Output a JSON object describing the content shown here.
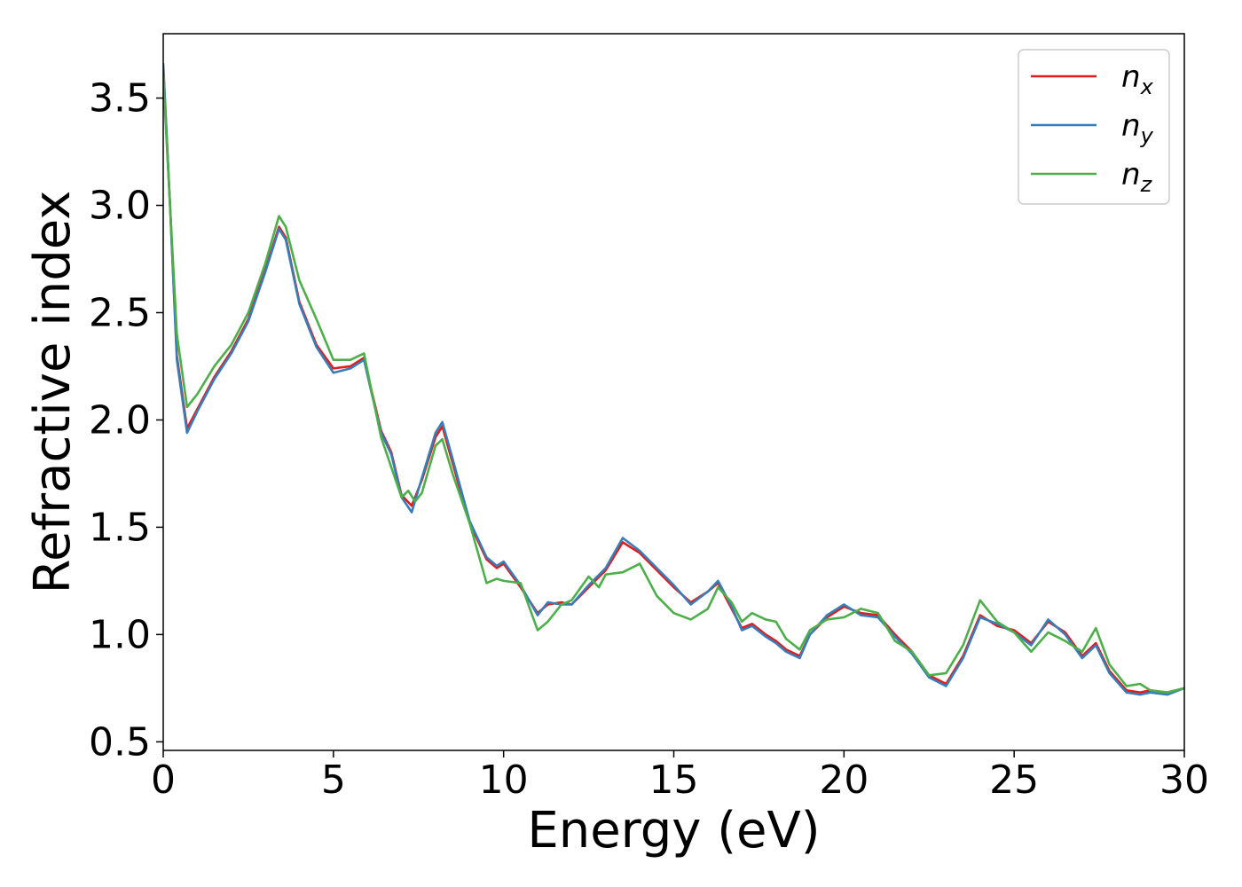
{
  "chart_data": {
    "type": "line",
    "title": "",
    "xlabel": "Energy (eV)",
    "ylabel": "Refractive index",
    "xlim": [
      0,
      30
    ],
    "ylim": [
      0.46,
      3.8
    ],
    "xticks": [
      0,
      5,
      10,
      15,
      20,
      25,
      30
    ],
    "yticks": [
      0.5,
      1.0,
      1.5,
      2.0,
      2.5,
      3.0,
      3.5
    ],
    "xtick_labels": [
      "0",
      "5",
      "10",
      "15",
      "20",
      "25",
      "30"
    ],
    "ytick_labels": [
      "0.5",
      "1.0",
      "1.5",
      "2.0",
      "2.5",
      "3.0",
      "3.5"
    ],
    "grid": false,
    "legend_position": "top-right",
    "series": [
      {
        "name": "n_x",
        "label_base": "n",
        "label_sub": "x",
        "color": "#e41a1c",
        "x": [
          0,
          0.2,
          0.4,
          0.7,
          1.0,
          1.5,
          2.0,
          2.5,
          3.0,
          3.4,
          3.6,
          4.0,
          4.5,
          5.0,
          5.5,
          5.9,
          6.1,
          6.4,
          6.7,
          7.0,
          7.3,
          7.6,
          8.0,
          8.2,
          8.5,
          9.0,
          9.5,
          9.8,
          10.0,
          10.5,
          11.0,
          11.3,
          11.7,
          12.0,
          12.5,
          13.0,
          13.5,
          14.0,
          14.5,
          15.0,
          15.5,
          16.0,
          16.3,
          16.7,
          17.0,
          17.3,
          17.7,
          18.0,
          18.3,
          18.7,
          19.0,
          19.5,
          20.0,
          20.5,
          21.0,
          21.5,
          22.0,
          22.5,
          23.0,
          23.5,
          24.0,
          24.5,
          25.0,
          25.5,
          26.0,
          26.5,
          27.0,
          27.4,
          27.8,
          28.3,
          28.7,
          29.0,
          29.5,
          30.0
        ],
        "y": [
          3.65,
          3.0,
          2.3,
          1.96,
          2.05,
          2.2,
          2.32,
          2.47,
          2.7,
          2.9,
          2.85,
          2.55,
          2.35,
          2.24,
          2.25,
          2.29,
          2.15,
          1.95,
          1.85,
          1.65,
          1.6,
          1.72,
          1.92,
          1.97,
          1.8,
          1.52,
          1.35,
          1.31,
          1.33,
          1.22,
          1.1,
          1.14,
          1.15,
          1.14,
          1.22,
          1.3,
          1.43,
          1.38,
          1.3,
          1.22,
          1.15,
          1.2,
          1.24,
          1.12,
          1.03,
          1.05,
          1.0,
          0.97,
          0.93,
          0.9,
          1.0,
          1.08,
          1.13,
          1.1,
          1.09,
          1.0,
          0.92,
          0.81,
          0.77,
          0.9,
          1.09,
          1.04,
          1.02,
          0.96,
          1.06,
          1.01,
          0.9,
          0.96,
          0.83,
          0.74,
          0.73,
          0.74,
          0.73,
          0.75
        ]
      },
      {
        "name": "n_y",
        "label_base": "n",
        "label_sub": "y",
        "color": "#377eb8",
        "x": [
          0,
          0.2,
          0.4,
          0.7,
          1.0,
          1.5,
          2.0,
          2.5,
          3.0,
          3.4,
          3.6,
          4.0,
          4.5,
          5.0,
          5.5,
          5.9,
          6.1,
          6.4,
          6.7,
          7.0,
          7.3,
          7.6,
          8.0,
          8.2,
          8.5,
          9.0,
          9.5,
          9.8,
          10.0,
          10.5,
          11.0,
          11.3,
          11.7,
          12.0,
          12.5,
          13.0,
          13.5,
          14.0,
          14.5,
          15.0,
          15.5,
          16.0,
          16.3,
          16.7,
          17.0,
          17.3,
          17.7,
          18.0,
          18.3,
          18.7,
          19.0,
          19.5,
          20.0,
          20.5,
          21.0,
          21.5,
          22.0,
          22.5,
          23.0,
          23.5,
          24.0,
          24.5,
          25.0,
          25.5,
          26.0,
          26.5,
          27.0,
          27.4,
          27.8,
          28.3,
          28.7,
          29.0,
          29.5,
          30.0
        ],
        "y": [
          3.66,
          3.0,
          2.28,
          1.94,
          2.04,
          2.19,
          2.31,
          2.46,
          2.69,
          2.89,
          2.84,
          2.54,
          2.34,
          2.22,
          2.24,
          2.28,
          2.14,
          1.94,
          1.84,
          1.64,
          1.57,
          1.73,
          1.94,
          1.99,
          1.82,
          1.53,
          1.36,
          1.32,
          1.34,
          1.23,
          1.09,
          1.15,
          1.14,
          1.14,
          1.23,
          1.31,
          1.45,
          1.39,
          1.31,
          1.23,
          1.14,
          1.2,
          1.25,
          1.13,
          1.02,
          1.04,
          0.99,
          0.96,
          0.92,
          0.89,
          1.0,
          1.09,
          1.14,
          1.09,
          1.08,
          0.99,
          0.91,
          0.8,
          0.76,
          0.89,
          1.08,
          1.05,
          1.01,
          0.95,
          1.07,
          1.0,
          0.89,
          0.95,
          0.82,
          0.73,
          0.72,
          0.73,
          0.72,
          0.75
        ]
      },
      {
        "name": "n_z",
        "label_base": "n",
        "label_sub": "z",
        "color": "#4daf4a",
        "x": [
          0,
          0.2,
          0.4,
          0.7,
          1.0,
          1.5,
          2.0,
          2.5,
          3.0,
          3.4,
          3.6,
          4.0,
          4.5,
          5.0,
          5.5,
          5.9,
          6.1,
          6.4,
          6.7,
          7.0,
          7.2,
          7.4,
          7.6,
          8.0,
          8.2,
          8.5,
          9.0,
          9.5,
          9.8,
          10.0,
          10.5,
          11.0,
          11.3,
          11.7,
          12.0,
          12.5,
          12.8,
          13.0,
          13.5,
          14.0,
          14.5,
          15.0,
          15.5,
          16.0,
          16.3,
          16.7,
          17.0,
          17.3,
          17.7,
          18.0,
          18.3,
          18.7,
          19.0,
          19.5,
          20.0,
          20.5,
          21.0,
          21.5,
          22.0,
          22.5,
          23.0,
          23.5,
          24.0,
          24.5,
          25.0,
          25.5,
          26.0,
          26.5,
          27.0,
          27.4,
          27.8,
          28.3,
          28.7,
          29.0,
          29.5,
          30.0
        ],
        "y": [
          3.6,
          3.0,
          2.4,
          2.06,
          2.12,
          2.25,
          2.35,
          2.5,
          2.73,
          2.95,
          2.9,
          2.65,
          2.47,
          2.28,
          2.28,
          2.31,
          2.15,
          1.92,
          1.78,
          1.64,
          1.67,
          1.62,
          1.66,
          1.88,
          1.91,
          1.75,
          1.52,
          1.24,
          1.26,
          1.25,
          1.24,
          1.02,
          1.06,
          1.14,
          1.16,
          1.27,
          1.22,
          1.28,
          1.29,
          1.33,
          1.18,
          1.1,
          1.07,
          1.12,
          1.22,
          1.15,
          1.06,
          1.1,
          1.07,
          1.06,
          0.98,
          0.93,
          1.02,
          1.07,
          1.08,
          1.12,
          1.1,
          0.97,
          0.92,
          0.81,
          0.82,
          0.95,
          1.16,
          1.06,
          1.01,
          0.92,
          1.01,
          0.97,
          0.92,
          1.03,
          0.86,
          0.76,
          0.77,
          0.74,
          0.73,
          0.75
        ]
      }
    ]
  }
}
